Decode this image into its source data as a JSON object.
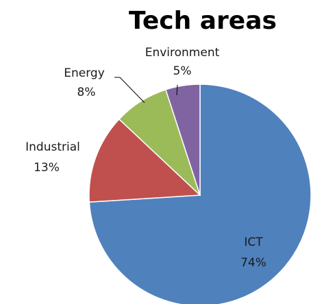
{
  "chart_data": {
    "type": "pie",
    "title": "Tech areas",
    "slices": [
      {
        "name": "ICT",
        "value": 74,
        "label": "74%",
        "color": "#4f81bd"
      },
      {
        "name": "Industrial",
        "value": 13,
        "label": "13%",
        "color": "#c0504d"
      },
      {
        "name": "Energy",
        "value": 8,
        "label": "8%",
        "color": "#9bbb59"
      },
      {
        "name": "Environment",
        "value": 5,
        "label": "5%",
        "color": "#8064a2"
      }
    ],
    "start_angle_deg": 0,
    "direction": "clockwise",
    "legend": "none"
  }
}
